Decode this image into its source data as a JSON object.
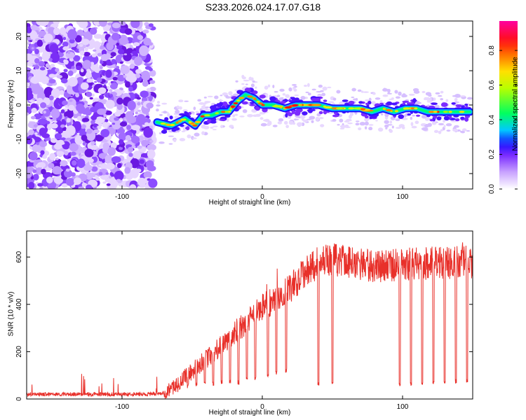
{
  "title": "S233.2026.024.17.07.G18",
  "chart_data": [
    {
      "type": "heatmap",
      "xlabel": "Height of straight line (km)",
      "ylabel": "Frequency (Hz)",
      "xlim": [
        -168,
        150
      ],
      "ylim": [
        -24.5,
        24.5
      ],
      "xticks": [
        -100,
        0,
        100
      ],
      "yticks": [
        -20,
        -10,
        0,
        10,
        20
      ],
      "noise_region_x": [
        -168,
        -78
      ],
      "ridge": {
        "x": [
          -75,
          -65,
          -55,
          -48,
          -42,
          -36,
          -30,
          -24,
          -18,
          -12,
          -6,
          0,
          8,
          16,
          24,
          32,
          40,
          50,
          60,
          70,
          78,
          86,
          94,
          102,
          110,
          118,
          126,
          134,
          142,
          148
        ],
        "freq": [
          -5,
          -6,
          -4,
          -6,
          -3,
          -3,
          -2,
          -2,
          1,
          3,
          2,
          0,
          0,
          -1,
          0,
          0,
          0,
          -1,
          -1,
          -1,
          -2,
          -1,
          -2,
          -1,
          -1,
          -2,
          -2,
          -2,
          -2,
          -2
        ]
      },
      "colorbar": {
        "label": "Normalized spectral amplitude",
        "range": [
          0,
          0.97
        ],
        "ticks": [
          0.0,
          0.2,
          0.4,
          0.6,
          0.8
        ]
      }
    },
    {
      "type": "line",
      "xlabel": "Height of straight line (km)",
      "ylabel": "SNR (10 * v/v)",
      "xlim": [
        -168,
        150
      ],
      "ylim": [
        0,
        710
      ],
      "xticks": [
        -100,
        0,
        100
      ],
      "yticks": [
        0,
        200,
        400,
        600
      ],
      "series": [
        {
          "name": "SNR",
          "color": "#e8302a",
          "envelope_x": [
            -168,
            -120,
            -80,
            -70,
            -60,
            -50,
            -40,
            -30,
            -20,
            -10,
            0,
            10,
            20,
            30,
            40,
            50,
            60,
            80,
            100,
            150
          ],
          "envelope_y": [
            20,
            20,
            20,
            25,
            60,
            120,
            170,
            220,
            280,
            330,
            390,
            420,
            470,
            530,
            580,
            590,
            580,
            560,
            570,
            580
          ],
          "dropout_x": [
            -65,
            -59,
            -53,
            -47,
            -41,
            -35,
            -29,
            -23,
            -17,
            -11,
            -5,
            4,
            10,
            17,
            40,
            50,
            98,
            106,
            114,
            122,
            130,
            138,
            146
          ],
          "dropout_y": [
            40,
            40,
            45,
            50,
            55,
            55,
            60,
            60,
            60,
            70,
            80,
            90,
            100,
            110,
            55,
            55,
            50,
            55,
            60,
            60,
            60,
            65,
            70
          ]
        }
      ]
    }
  ]
}
